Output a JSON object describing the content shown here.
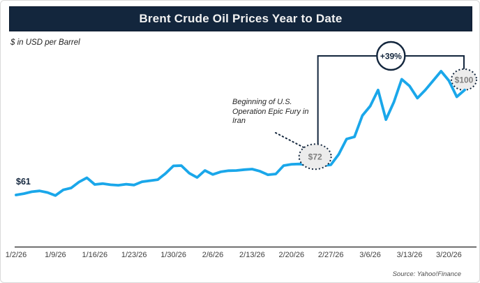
{
  "header": {
    "title": "Brent Crude Oil Prices Year to Date",
    "bg_color": "#13263d",
    "text_color": "#f2f2f2"
  },
  "subtitle": "$ in USD per Barrel",
  "source": "Source: Yahoo!Finance",
  "annotation": {
    "lines": [
      "Beginning of U.S.",
      "Operation Epic Fury in",
      "Iran"
    ]
  },
  "markers": {
    "start": {
      "label": "$61",
      "value": 61
    },
    "event": {
      "label": "$72",
      "value": 72,
      "index": 38,
      "date": "2/25/26"
    },
    "end": {
      "label": "$100",
      "value": 100,
      "index": 57,
      "date": "3/24/26"
    },
    "change": {
      "label": "+39%"
    }
  },
  "colors": {
    "line": "#1aa7ea",
    "navy": "#13263d",
    "circle_fill": "#ececec",
    "circle_text": "#7f7f7f",
    "axis": "#3f3f3f"
  },
  "chart_data": {
    "type": "line",
    "title": "Brent Crude Oil Prices Year to Date",
    "ylabel": "$ in USD per Barrel",
    "grid": false,
    "legend": "none",
    "ylim": [
      55,
      112
    ],
    "x_labels": [
      "1/2/26",
      "1/9/26",
      "1/16/26",
      "1/23/26",
      "1/30/26",
      "2/6/26",
      "2/13/26",
      "2/20/26",
      "2/27/26",
      "3/6/26",
      "3/13/26",
      "3/20/26"
    ],
    "dates": [
      "1/2",
      "1/5",
      "1/6",
      "1/7",
      "1/8",
      "1/9",
      "1/12",
      "1/13",
      "1/14",
      "1/15",
      "1/16",
      "1/19",
      "1/20",
      "1/21",
      "1/22",
      "1/23",
      "1/26",
      "1/27",
      "1/28",
      "1/29",
      "1/30",
      "2/2",
      "2/3",
      "2/4",
      "2/5",
      "2/6",
      "2/9",
      "2/10",
      "2/11",
      "2/12",
      "2/13",
      "2/16",
      "2/17",
      "2/18",
      "2/19",
      "2/20",
      "2/23",
      "2/24",
      "2/25",
      "2/26",
      "2/27",
      "3/2",
      "3/3",
      "3/4",
      "3/5",
      "3/6",
      "3/9",
      "3/10",
      "3/11",
      "3/12",
      "3/13",
      "3/16",
      "3/17",
      "3/18",
      "3/19",
      "3/20",
      "3/23",
      "3/24"
    ],
    "values": [
      61.0,
      61.5,
      62.2,
      62.5,
      61.9,
      60.8,
      62.9,
      63.6,
      65.8,
      67.4,
      64.9,
      65.2,
      64.8,
      64.6,
      65.0,
      64.7,
      65.9,
      66.3,
      66.7,
      69.0,
      71.8,
      71.9,
      69.1,
      67.5,
      70.1,
      68.6,
      69.6,
      70.0,
      70.1,
      70.4,
      70.6,
      69.8,
      68.5,
      68.8,
      71.9,
      72.4,
      72.5,
      72.2,
      71.6,
      71.9,
      72.2,
      76.1,
      81.8,
      82.6,
      90.5,
      94.0,
      100.0,
      89.0,
      95.5,
      104.0,
      101.5,
      97.0,
      100.0,
      103.5,
      107.0,
      103.5,
      97.5,
      100.0
    ],
    "annotations": [
      {
        "text": "Beginning of U.S. Operation Epic Fury in Iran",
        "points_to_value": 72
      },
      {
        "text": "+39%",
        "type": "change-bracket",
        "from_value": 72,
        "to_value": 100
      },
      {
        "text": "$61",
        "type": "start-label"
      },
      {
        "text": "$72",
        "type": "event-marker"
      },
      {
        "text": "$100",
        "type": "end-marker"
      }
    ],
    "source": "Source: Yahoo!Finance"
  }
}
